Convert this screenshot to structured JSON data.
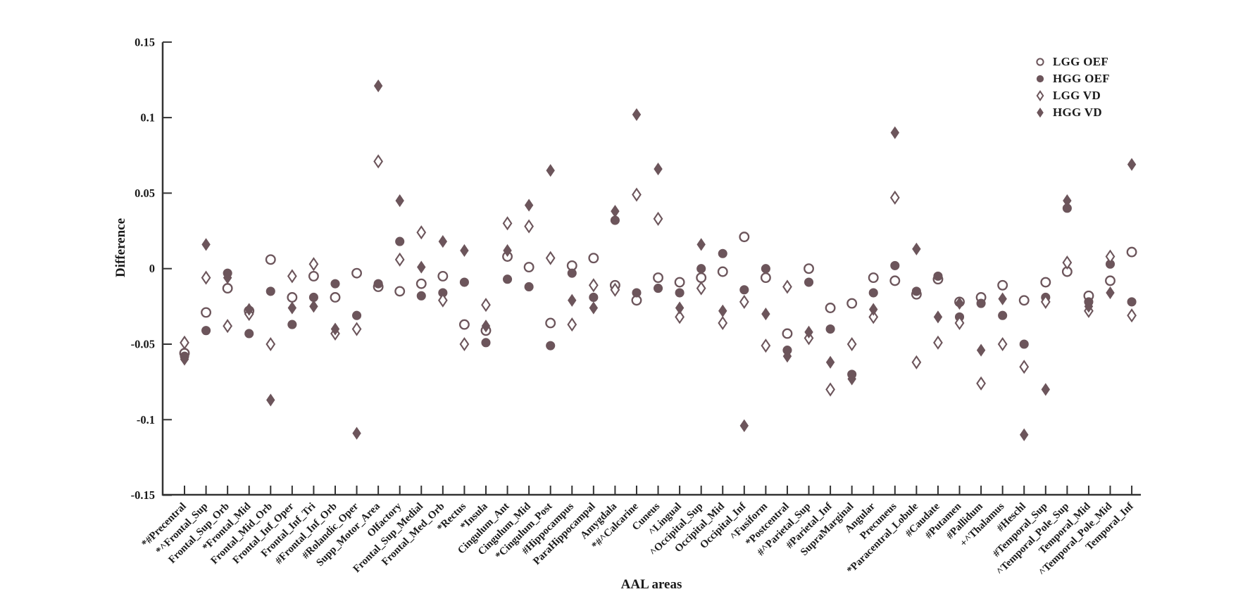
{
  "figure": {
    "background": "#ffffff",
    "marker_color": "#6c555b",
    "axis_color": "#333333",
    "text_color": "#1a1a1a"
  },
  "chart_data": {
    "type": "scatter",
    "title": "",
    "xlabel": "AAL areas",
    "ylabel": "Difference",
    "ylim": [
      -0.15,
      0.15
    ],
    "yticks": [
      0.15,
      0.1,
      0.05,
      0,
      -0.05,
      -0.1,
      -0.15
    ],
    "ytick_labels": [
      "0.15",
      "0.1",
      "0.05",
      "0",
      "-0.05",
      "-0.1",
      "-0.15"
    ],
    "grid": false,
    "legend_position": "top-right",
    "categories": [
      "*#Precentral",
      "*^Frontal_Sup",
      "Frontal_Sup_Orb",
      "*Frontal_Mid",
      "Frontal_Mid_Orb",
      "Frontal_Inf_Oper",
      "Frontal_Inf_Tri",
      "#Frontal_Inf_Orb",
      "#Rolandic_Oper",
      "Supp_Motor_Area",
      "Olfactory",
      "Frontal_Sup_Medial",
      "Frontal_Med_Orb",
      "*Rectus",
      "*Insula",
      "Cingulum_Ant",
      "Cingulum_Mid",
      "*Cingulum_Post",
      "#Hippocampus",
      "ParaHippocampal",
      "Amygdala",
      "*#^Calcarine",
      "Cuneus",
      "^Lingual",
      "^Occipital_Sup",
      "Occipital_Mid",
      "Occipital_Inf",
      "^Fusiform",
      "*Postcentral",
      "#^Parietal_Sup",
      "#Parietal_Inf",
      "SupraMarginal",
      "Angular",
      "Precuneus",
      "*Paracentral_Lobule",
      "#Caudate",
      "#Putamen",
      "#Pallidum",
      "+^Thalamus",
      "#Heschl",
      "#Temporal_Sup",
      "^Temporal_Pole_Sup",
      "Temporal_Mid",
      "^Temporal_Pole_Mid",
      "Temporal_Inf"
    ],
    "series": [
      {
        "name": "LGG OEF",
        "marker": "open-circle",
        "values": [
          -0.056,
          -0.029,
          -0.013,
          -0.028,
          0.006,
          -0.019,
          -0.005,
          -0.019,
          -0.003,
          -0.012,
          -0.015,
          -0.01,
          -0.005,
          -0.037,
          -0.041,
          0.008,
          0.001,
          -0.036,
          0.002,
          0.007,
          -0.011,
          -0.021,
          -0.006,
          -0.009,
          -0.006,
          -0.002,
          0.021,
          -0.006,
          -0.043,
          0.0,
          -0.026,
          -0.023,
          -0.006,
          -0.008,
          -0.017,
          -0.007,
          -0.022,
          -0.019,
          -0.011,
          -0.021,
          -0.009,
          -0.002,
          -0.018,
          -0.008,
          0.011
        ]
      },
      {
        "name": "HGG OEF",
        "marker": "filled-circle",
        "values": [
          -0.058,
          -0.041,
          -0.003,
          -0.043,
          -0.015,
          -0.037,
          -0.019,
          -0.01,
          -0.031,
          -0.01,
          0.018,
          -0.018,
          -0.016,
          -0.009,
          -0.049,
          -0.007,
          -0.012,
          -0.051,
          -0.003,
          -0.019,
          0.032,
          -0.016,
          -0.013,
          -0.016,
          0.0,
          0.01,
          -0.014,
          0.0,
          -0.054,
          -0.009,
          -0.04,
          -0.07,
          -0.016,
          0.002,
          -0.015,
          -0.005,
          -0.032,
          -0.023,
          -0.031,
          -0.05,
          -0.019,
          0.04,
          -0.022,
          0.003,
          -0.022
        ]
      },
      {
        "name": "LGG VD",
        "marker": "open-diamond",
        "values": [
          -0.049,
          -0.006,
          -0.038,
          -0.03,
          -0.05,
          -0.005,
          0.003,
          -0.043,
          -0.04,
          0.071,
          0.006,
          0.024,
          -0.021,
          -0.05,
          -0.024,
          0.03,
          0.028,
          0.007,
          -0.037,
          -0.011,
          -0.014,
          0.049,
          0.033,
          -0.032,
          -0.013,
          -0.036,
          -0.022,
          -0.051,
          -0.012,
          -0.046,
          -0.08,
          -0.05,
          -0.032,
          0.047,
          -0.062,
          -0.049,
          -0.036,
          -0.076,
          -0.05,
          -0.065,
          -0.022,
          0.004,
          -0.028,
          0.008,
          -0.031
        ]
      },
      {
        "name": "HGG VD",
        "marker": "filled-diamond",
        "values": [
          -0.06,
          0.016,
          -0.006,
          -0.027,
          -0.087,
          -0.026,
          -0.025,
          -0.04,
          -0.109,
          0.121,
          0.045,
          0.001,
          0.018,
          0.012,
          -0.038,
          0.012,
          0.042,
          0.065,
          -0.021,
          -0.026,
          0.038,
          0.102,
          0.066,
          -0.026,
          0.016,
          -0.028,
          -0.104,
          -0.03,
          -0.058,
          -0.042,
          -0.062,
          -0.073,
          -0.027,
          0.09,
          0.013,
          -0.032,
          -0.023,
          -0.054,
          -0.02,
          -0.11,
          -0.08,
          0.045,
          -0.025,
          -0.016,
          0.069
        ]
      }
    ]
  }
}
